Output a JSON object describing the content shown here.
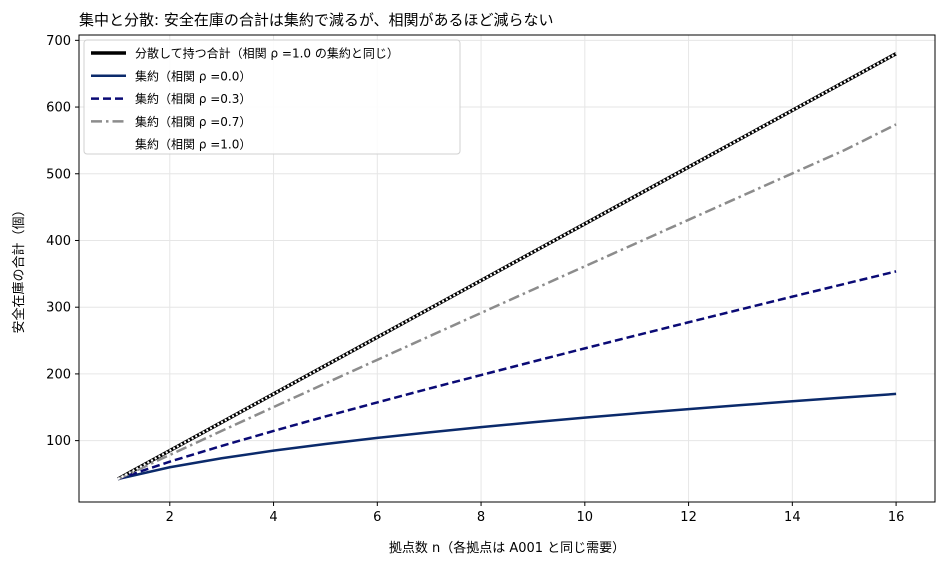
{
  "chart_data": {
    "type": "line",
    "title": "集中と分散: 安全在庫の合計は集約で減るが、相関があるほど減らない",
    "xlabel": "拠点数 n（各拠点は A001 と同じ需要）",
    "ylabel": "安全在庫の合計（個）",
    "xlim": [
      0.25,
      16.75
    ],
    "ylim": [
      8,
      708
    ],
    "xticks": [
      2,
      4,
      6,
      8,
      10,
      12,
      14,
      16
    ],
    "yticks": [
      100,
      200,
      300,
      400,
      500,
      600,
      700
    ],
    "grid": true,
    "legend_position": "top-left",
    "base_value": 42.5,
    "x": [
      1,
      2,
      3,
      4,
      5,
      6,
      7,
      8,
      9,
      10,
      11,
      12,
      13,
      14,
      15,
      16
    ],
    "series": [
      {
        "name": "分散して持つ合計（相関 ρ =1.0 の集約と同じ）",
        "color": "#000000",
        "style": "solid",
        "values": [
          42.5,
          85,
          127.5,
          170,
          212.5,
          255,
          297.5,
          340,
          382.5,
          425,
          467.5,
          510,
          552.5,
          595,
          637.5,
          680
        ]
      },
      {
        "name": "集約（相関 ρ =0.0）",
        "color": "#0b2a6b",
        "style": "solid",
        "values": [
          42.5,
          60.1,
          73.6,
          85,
          95,
          104.1,
          112.4,
          120.2,
          127.5,
          134.4,
          141,
          147.2,
          153.2,
          159,
          164.6,
          170
        ]
      },
      {
        "name": "集約（相関 ρ =0.3）",
        "color": "#0a0a75",
        "style": "dashed",
        "values": [
          42.5,
          68.5,
          92.1,
          114.5,
          136.2,
          157.3,
          178,
          198.3,
          218.4,
          238.3,
          257.9,
          277.4,
          296.7,
          315.8,
          334.8,
          353.7
        ]
      },
      {
        "name": "集約（相関 ρ =0.7）",
        "color": "#8c8c8c",
        "style": "dashdot",
        "values": [
          42.5,
          78.5,
          114.6,
          150.3,
          185.8,
          221.1,
          256.3,
          291.4,
          326.4,
          361.3,
          396.2,
          431,
          465.8,
          500.5,
          535.2,
          574
        ]
      },
      {
        "name": "集約（相関 ρ =1.0）",
        "color": "#ffffff",
        "style": "dotted",
        "values": [
          42.5,
          85,
          127.5,
          170,
          212.5,
          255,
          297.5,
          340,
          382.5,
          425,
          467.5,
          510,
          552.5,
          595,
          637.5,
          680
        ]
      }
    ]
  }
}
